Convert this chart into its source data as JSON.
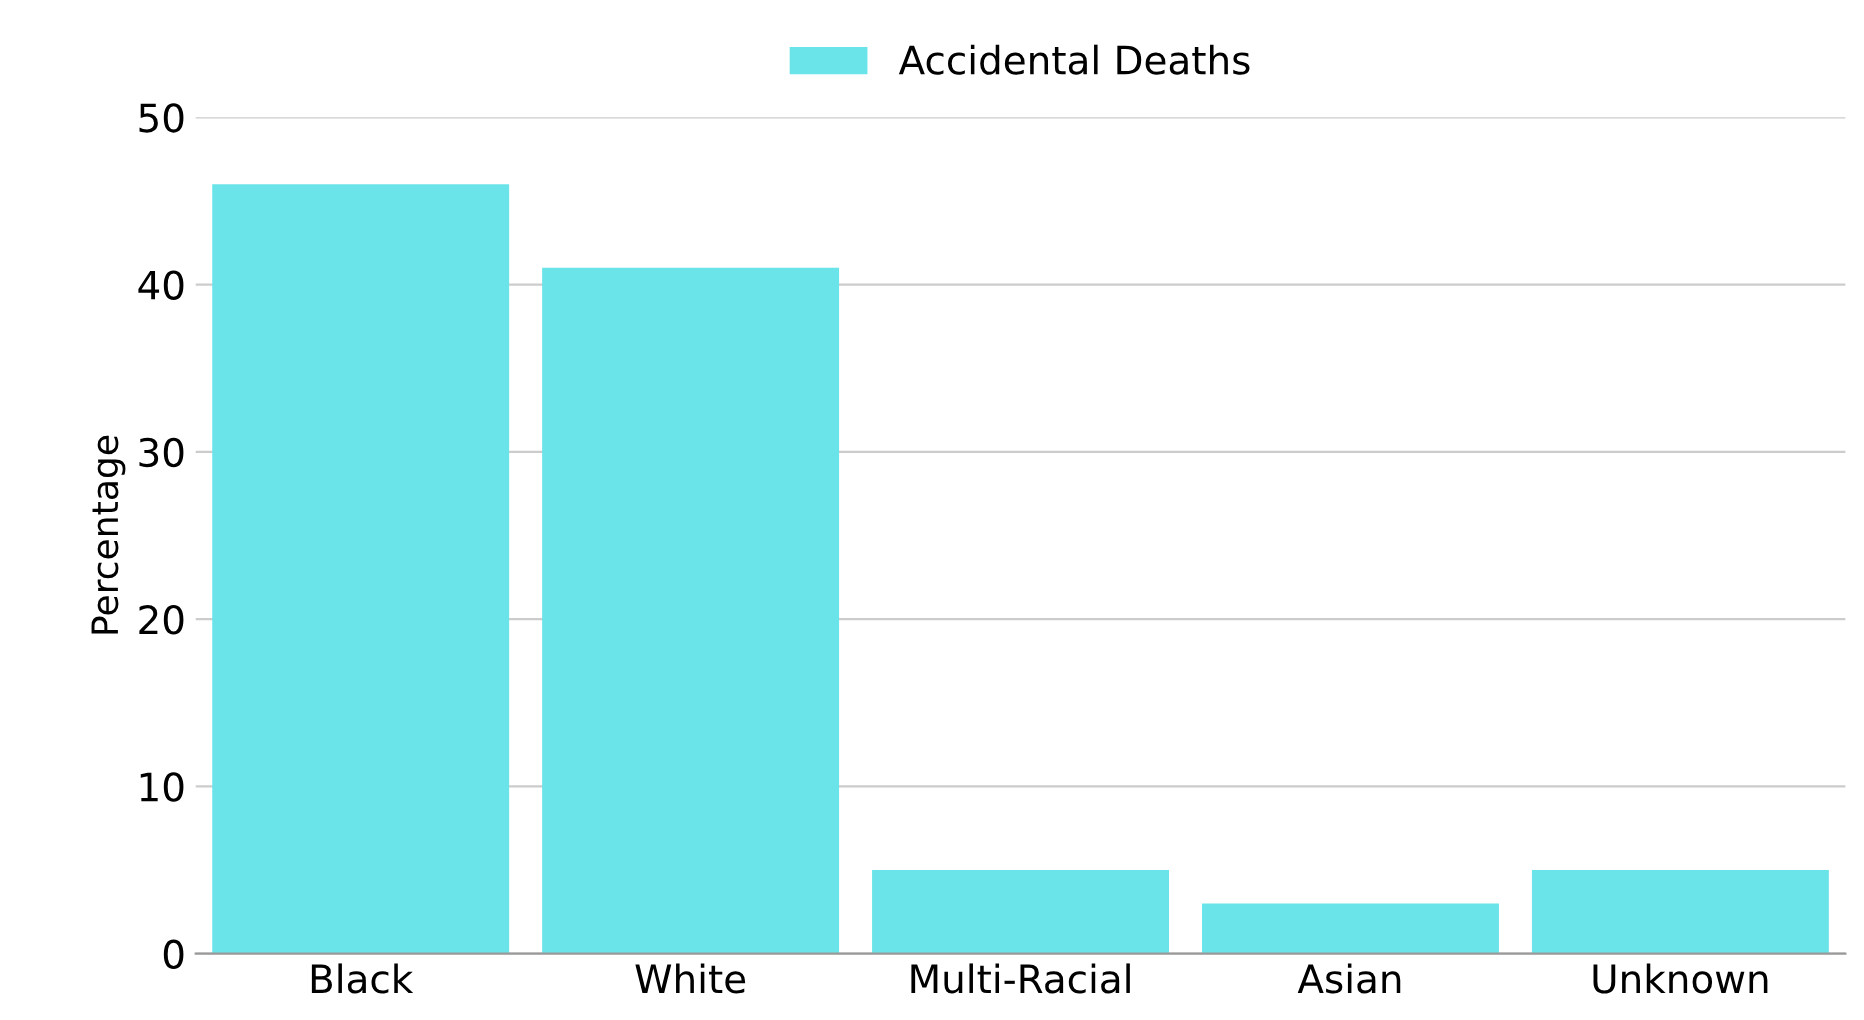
{
  "chart_data": {
    "type": "bar",
    "categories": [
      "Black",
      "White",
      "Multi-Racial",
      "Asian",
      "Unknown"
    ],
    "series": [
      {
        "name": "Accidental Deaths",
        "color": "#6ae4e8",
        "values": [
          46,
          41,
          5,
          3,
          5
        ]
      }
    ],
    "ylabel": "Percentage",
    "ylim": [
      0,
      50
    ],
    "yticks": [
      0,
      10,
      20,
      30,
      40,
      50
    ],
    "grid": "y",
    "legend": "top"
  }
}
